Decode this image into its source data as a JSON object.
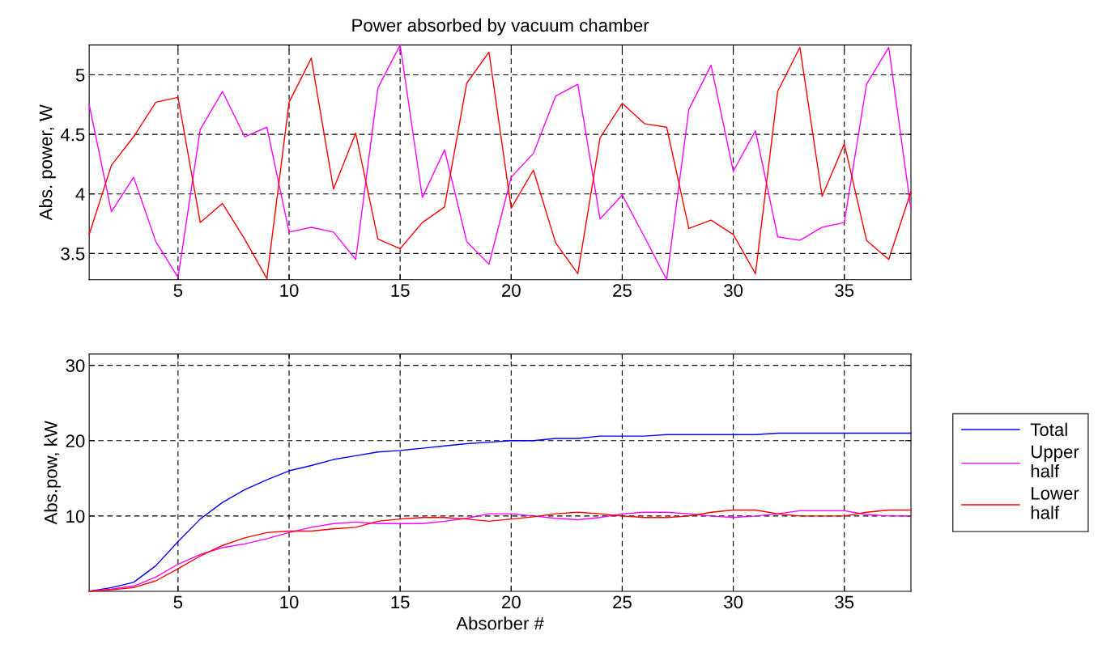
{
  "chart_data": [
    {
      "type": "line",
      "title": "Power absorbed by vacuum chamber",
      "ylabel": "Abs. power, W",
      "x": [
        1,
        2,
        3,
        4,
        5,
        6,
        7,
        8,
        9,
        10,
        11,
        12,
        13,
        14,
        15,
        16,
        17,
        18,
        19,
        20,
        21,
        22,
        23,
        24,
        25,
        26,
        27,
        28,
        29,
        30,
        31,
        32,
        33,
        34,
        35,
        36,
        37,
        38
      ],
      "xlim": [
        1,
        38
      ],
      "xticks": [
        5,
        10,
        15,
        20,
        25,
        30,
        35
      ],
      "ylim": [
        3.28,
        5.25
      ],
      "yticks": [
        3.5,
        4,
        {
          "value": 4.5,
          "label": "4.5"
        },
        5
      ],
      "grid": true,
      "legend": false,
      "series": [
        {
          "color": "#ff00ff",
          "values": [
            4.75,
            3.85,
            4.14,
            3.6,
            3.3,
            4.54,
            4.86,
            4.48,
            4.56,
            3.68,
            3.72,
            3.68,
            3.45,
            4.89,
            5.25,
            3.97,
            4.37,
            3.6,
            3.41,
            4.14,
            4.34,
            4.82,
            4.92,
            3.79,
            3.99,
            3.64,
            3.28,
            4.71,
            5.08,
            4.19,
            4.53,
            3.64,
            3.61,
            3.72,
            3.76,
            4.92,
            5.23,
            3.87
          ]
        },
        {
          "color": "#ff0000",
          "values": [
            3.66,
            4.24,
            4.48,
            4.77,
            4.81,
            3.76,
            3.92,
            3.62,
            3.29,
            4.77,
            5.14,
            4.04,
            4.51,
            3.62,
            3.54,
            3.76,
            3.89,
            4.93,
            5.19,
            3.88,
            4.2,
            3.59,
            3.33,
            4.47,
            4.76,
            4.59,
            4.56,
            3.71,
            3.78,
            3.66,
            3.33,
            4.86,
            5.23,
            3.98,
            4.42,
            3.61,
            3.45,
            4.02
          ]
        }
      ]
    },
    {
      "type": "line",
      "xlabel": "Absorber #",
      "ylabel": "Abs.pow, kW",
      "x": [
        1,
        2,
        3,
        4,
        5,
        6,
        7,
        8,
        9,
        10,
        11,
        12,
        13,
        14,
        15,
        16,
        17,
        18,
        19,
        20,
        21,
        22,
        23,
        24,
        25,
        26,
        27,
        28,
        29,
        30,
        31,
        32,
        33,
        34,
        35,
        36,
        37,
        38
      ],
      "xlim": [
        1,
        38
      ],
      "xticks": [
        5,
        10,
        15,
        20,
        25,
        30,
        35
      ],
      "ylim": [
        0,
        31.5
      ],
      "yticks": [
        10,
        20,
        30
      ],
      "grid": true,
      "legend": "right",
      "series": [
        {
          "name": "Total",
          "color": "#0000ff",
          "values": [
            0,
            0.5,
            1.2,
            3.4,
            6.6,
            9.6,
            11.8,
            13.5,
            14.8,
            16.0,
            16.7,
            17.5,
            18.0,
            18.5,
            18.7,
            19.0,
            19.3,
            19.6,
            19.8,
            20.0,
            20.0,
            20.3,
            20.3,
            20.6,
            20.6,
            20.6,
            20.8,
            20.8,
            20.8,
            20.8,
            20.8,
            21.0,
            21.0,
            21.0,
            21.0,
            21.0,
            21.0,
            21.0
          ]
        },
        {
          "name": "Upper\nhalf",
          "color": "#ff00ff",
          "values": [
            0,
            0.3,
            0.7,
            1.9,
            3.6,
            4.9,
            5.8,
            6.3,
            7.0,
            7.8,
            8.5,
            9.0,
            9.2,
            9.0,
            9.0,
            9.0,
            9.3,
            9.7,
            10.3,
            10.3,
            10.0,
            9.7,
            9.5,
            9.8,
            10.3,
            10.5,
            10.5,
            10.3,
            10.0,
            9.8,
            10.0,
            10.3,
            10.7,
            10.7,
            10.7,
            10.2,
            10.0,
            10.0
          ]
        },
        {
          "name": "Lower\nhalf",
          "color": "#ff0000",
          "values": [
            0,
            0.2,
            0.5,
            1.4,
            3.0,
            4.7,
            6.1,
            7.1,
            7.8,
            8.0,
            8.0,
            8.3,
            8.5,
            9.3,
            9.6,
            9.8,
            9.8,
            9.6,
            9.3,
            9.6,
            9.9,
            10.3,
            10.5,
            10.3,
            10.0,
            9.8,
            9.8,
            10.0,
            10.5,
            10.8,
            10.8,
            10.3,
            10.0,
            10.0,
            10.0,
            10.5,
            10.8,
            10.8
          ]
        }
      ]
    }
  ]
}
